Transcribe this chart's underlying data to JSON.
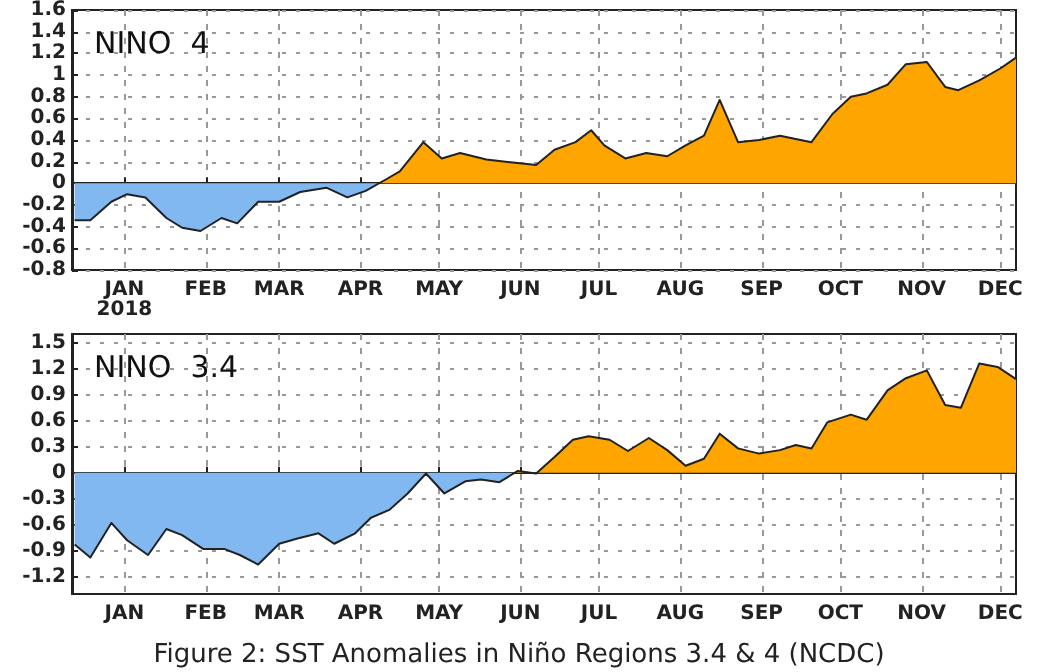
{
  "chart_data": [
    {
      "type": "area",
      "title": "NINO  4",
      "x": [
        "2017-12-13",
        "2017-12-19",
        "2017-12-27",
        "2018-01-02",
        "2018-01-09",
        "2018-01-17",
        "2018-01-23",
        "2018-01-30",
        "2018-02-07",
        "2018-02-13",
        "2018-02-21",
        "2018-03-01",
        "2018-03-09",
        "2018-03-19",
        "2018-03-27",
        "2018-04-03",
        "2018-04-11",
        "2018-04-16",
        "2018-04-25",
        "2018-05-02",
        "2018-05-09",
        "2018-05-19",
        "2018-05-30",
        "2018-06-07",
        "2018-06-14",
        "2018-06-22",
        "2018-06-28",
        "2018-07-03",
        "2018-07-11",
        "2018-07-19",
        "2018-07-27",
        "2018-08-03",
        "2018-08-10",
        "2018-08-16",
        "2018-08-23",
        "2018-08-31",
        "2018-09-08",
        "2018-09-14",
        "2018-09-20",
        "2018-09-28",
        "2018-10-05",
        "2018-10-11",
        "2018-10-19",
        "2018-10-26",
        "2018-11-03",
        "2018-11-10",
        "2018-11-15",
        "2018-11-23",
        "2018-12-01",
        "2018-12-07"
      ],
      "series": [
        {
          "colors": [
            "#82b8f0",
            "#82b8f0",
            "#82b8f0",
            "#82b8f0",
            "#82b8f0",
            "#82b8f0",
            "#82b8f0",
            "#82b8f0",
            "#82b8f0",
            "#82b8f0",
            "#82b8f0",
            "#82b8f0",
            "#82b8f0",
            "#82b8f0",
            "#82b8f0",
            "#82b8f0",
            "#ffa500",
            "#ffa500",
            "#ffa500",
            "#ffa500",
            "#ffa500",
            "#ffa500",
            "#ffa500",
            "#ffa500",
            "#ffa500",
            "#ffa500",
            "#ffa500",
            "#ffa500",
            "#ffa500",
            "#ffa500",
            "#ffa500",
            "#ffa500",
            "#ffa500",
            "#ffa500",
            "#ffa500",
            "#ffa500",
            "#ffa500",
            "#ffa500",
            "#ffa500",
            "#ffa500",
            "#ffa500",
            "#ffa500",
            "#ffa500",
            "#ffa500",
            "#ffa500",
            "#ffa500",
            "#ffa500",
            "#ffa500",
            "#ffa500",
            "#ffa500"
          ],
          "values": [
            -0.34,
            -0.34,
            -0.17,
            -0.1,
            -0.13,
            -0.32,
            -0.41,
            -0.44,
            -0.32,
            -0.37,
            -0.17,
            -0.17,
            -0.08,
            -0.04,
            -0.13,
            -0.07,
            0.04,
            0.11,
            0.38,
            0.23,
            0.28,
            0.22,
            0.19,
            0.17,
            0.31,
            0.38,
            0.49,
            0.35,
            0.23,
            0.28,
            0.25,
            0.35,
            0.44,
            0.77,
            0.38,
            0.4,
            0.44,
            0.41,
            0.38,
            0.64,
            0.8,
            0.83,
            0.91,
            1.1,
            1.12,
            0.89,
            0.86,
            0.95,
            1.06,
            1.16
          ]
        }
      ],
      "xlim": [
        "2017-12-12",
        "2018-12-07"
      ],
      "xticks": [
        {
          "value": "2018-01-01",
          "label": "JAN\n2018"
        },
        {
          "value": "2018-02-01",
          "label": "FEB"
        },
        {
          "value": "2018-03-01",
          "label": "MAR"
        },
        {
          "value": "2018-04-01",
          "label": "APR"
        },
        {
          "value": "2018-05-01",
          "label": "MAY"
        },
        {
          "value": "2018-06-01",
          "label": "JUN"
        },
        {
          "value": "2018-07-01",
          "label": "JUL"
        },
        {
          "value": "2018-08-01",
          "label": "AUG"
        },
        {
          "value": "2018-09-01",
          "label": "SEP"
        },
        {
          "value": "2018-10-01",
          "label": "OCT"
        },
        {
          "value": "2018-11-01",
          "label": "NOV"
        },
        {
          "value": "2018-12-01",
          "label": "DEC"
        }
      ],
      "ylim": [
        -0.8,
        1.6
      ],
      "yticks": [
        -0.8,
        -0.6,
        -0.4,
        -0.2,
        0,
        0.2,
        0.4,
        0.6,
        0.8,
        1,
        1.2,
        1.4,
        1.6
      ],
      "grid": true
    },
    {
      "type": "area",
      "title": "NINO  3.4",
      "x": [
        "2017-12-13",
        "2017-12-19",
        "2017-12-27",
        "2018-01-02",
        "2018-01-10",
        "2018-01-17",
        "2018-01-23",
        "2018-01-31",
        "2018-02-08",
        "2018-02-14",
        "2018-02-21",
        "2018-03-01",
        "2018-03-08",
        "2018-03-16",
        "2018-03-22",
        "2018-03-30",
        "2018-04-05",
        "2018-04-12",
        "2018-04-19",
        "2018-04-26",
        "2018-05-03",
        "2018-05-11",
        "2018-05-17",
        "2018-05-24",
        "2018-05-31",
        "2018-06-07",
        "2018-06-14",
        "2018-06-21",
        "2018-06-27",
        "2018-07-05",
        "2018-07-12",
        "2018-07-20",
        "2018-07-27",
        "2018-08-03",
        "2018-08-10",
        "2018-08-16",
        "2018-08-23",
        "2018-08-31",
        "2018-09-08",
        "2018-09-14",
        "2018-09-20",
        "2018-09-26",
        "2018-10-05",
        "2018-10-11",
        "2018-10-19",
        "2018-10-26",
        "2018-11-03",
        "2018-11-10",
        "2018-11-16",
        "2018-11-23",
        "2018-11-30",
        "2018-12-07"
      ],
      "series": [
        {
          "colors": [
            "#82b8f0",
            "#82b8f0",
            "#82b8f0",
            "#82b8f0",
            "#82b8f0",
            "#82b8f0",
            "#82b8f0",
            "#82b8f0",
            "#82b8f0",
            "#82b8f0",
            "#82b8f0",
            "#82b8f0",
            "#82b8f0",
            "#82b8f0",
            "#82b8f0",
            "#82b8f0",
            "#82b8f0",
            "#82b8f0",
            "#82b8f0",
            "#82b8f0",
            "#82b8f0",
            "#82b8f0",
            "#82b8f0",
            "#82b8f0",
            "#ffa500",
            "#82b8f0",
            "#ffa500",
            "#ffa500",
            "#ffa500",
            "#ffa500",
            "#ffa500",
            "#ffa500",
            "#ffa500",
            "#ffa500",
            "#ffa500",
            "#ffa500",
            "#ffa500",
            "#ffa500",
            "#ffa500",
            "#ffa500",
            "#ffa500",
            "#ffa500",
            "#ffa500",
            "#ffa500",
            "#ffa500",
            "#ffa500",
            "#ffa500",
            "#ffa500",
            "#ffa500",
            "#ffa500",
            "#ffa500",
            "#ffa500"
          ],
          "values": [
            -0.83,
            -0.98,
            -0.58,
            -0.78,
            -0.95,
            -0.65,
            -0.72,
            -0.88,
            -0.88,
            -0.95,
            -1.06,
            -0.82,
            -0.76,
            -0.7,
            -0.82,
            -0.7,
            -0.52,
            -0.43,
            -0.24,
            -0.01,
            -0.24,
            -0.1,
            -0.08,
            -0.11,
            0.02,
            -0.01,
            0.18,
            0.38,
            0.42,
            0.38,
            0.25,
            0.4,
            0.26,
            0.08,
            0.16,
            0.45,
            0.28,
            0.22,
            0.26,
            0.32,
            0.28,
            0.58,
            0.67,
            0.61,
            0.95,
            1.09,
            1.18,
            0.78,
            0.75,
            1.26,
            1.22,
            1.08
          ]
        }
      ],
      "xlim": [
        "2017-12-12",
        "2018-12-07"
      ],
      "xticks": [
        {
          "value": "2018-01-01",
          "label": "JAN"
        },
        {
          "value": "2018-02-01",
          "label": "FEB"
        },
        {
          "value": "2018-03-01",
          "label": "MAR"
        },
        {
          "value": "2018-04-01",
          "label": "APR"
        },
        {
          "value": "2018-05-01",
          "label": "MAY"
        },
        {
          "value": "2018-06-01",
          "label": "JUN"
        },
        {
          "value": "2018-07-01",
          "label": "JUL"
        },
        {
          "value": "2018-08-01",
          "label": "AUG"
        },
        {
          "value": "2018-09-01",
          "label": "SEP"
        },
        {
          "value": "2018-10-01",
          "label": "OCT"
        },
        {
          "value": "2018-11-01",
          "label": "NOV"
        },
        {
          "value": "2018-12-01",
          "label": "DEC"
        }
      ],
      "ylim": [
        -1.4,
        1.6
      ],
      "yticks": [
        -1.2,
        -0.9,
        -0.6,
        -0.3,
        0,
        0.3,
        0.6,
        0.9,
        1.2,
        1.5
      ],
      "grid": true,
      "annotations": [
        "Figure 2: SST Anomalies in Niño Regions 3.4 & 4 (NCDC)"
      ]
    }
  ]
}
